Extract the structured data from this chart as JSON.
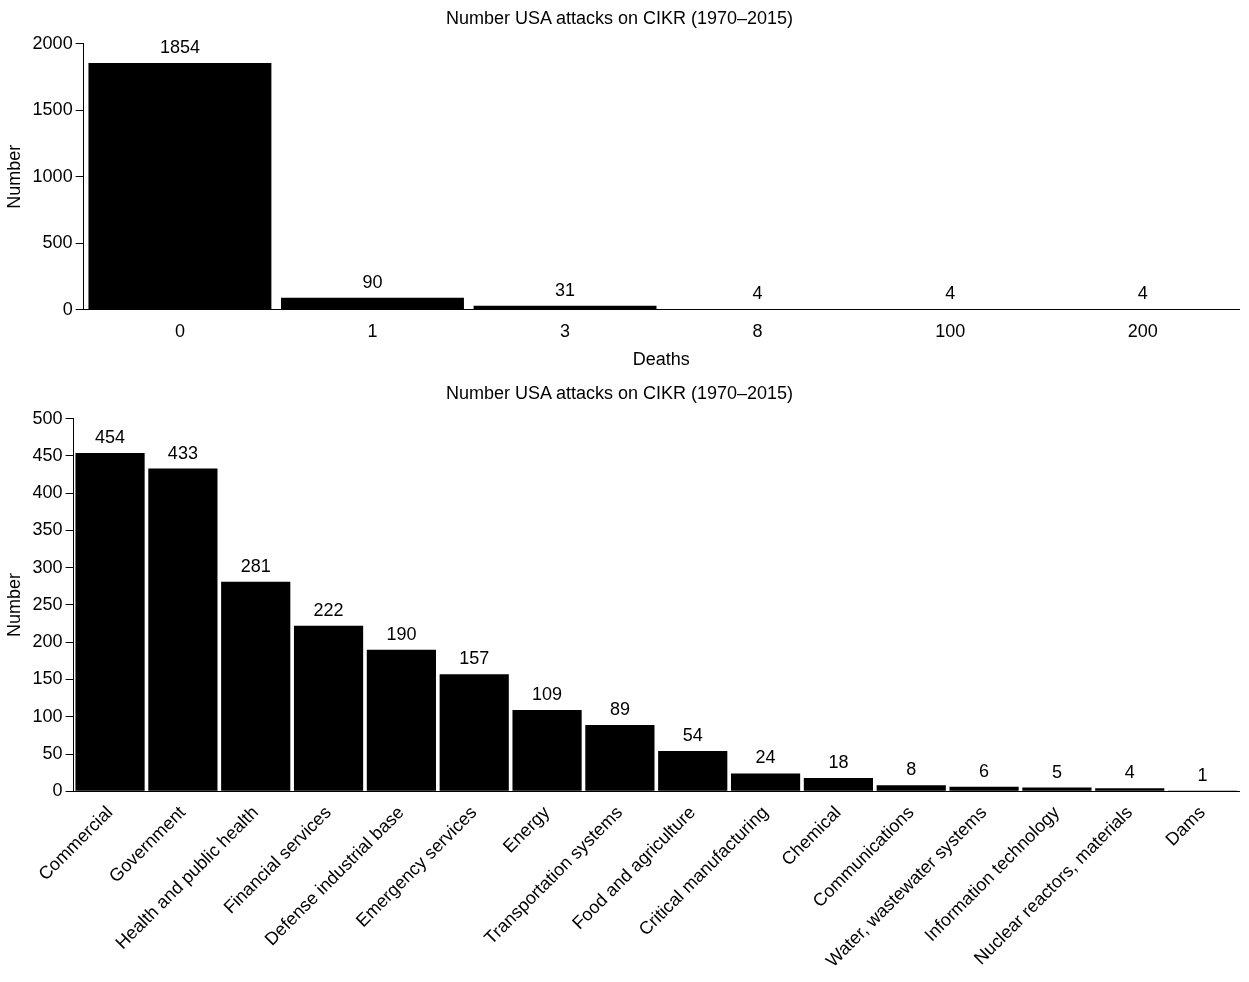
{
  "chart_data": [
    {
      "type": "bar",
      "title": "Number USA attacks on CIKR (1970–2015)",
      "xlabel": "Deaths",
      "ylabel": "Number",
      "categories": [
        "0",
        "1",
        "3",
        "8",
        "100",
        "200"
      ],
      "values": [
        1854,
        90,
        31,
        4,
        4,
        4
      ],
      "color": "#000000",
      "ylim": [
        0,
        2000
      ],
      "yticks": [
        0,
        500,
        1000,
        1500,
        2000
      ],
      "data_labels": true
    },
    {
      "type": "bar",
      "title": "Number USA attacks on CIKR (1970–2015)",
      "ylabel": "Number",
      "categories": [
        "Commercial",
        "Government",
        "Health and public health",
        "Financial services",
        "Defense industrial base",
        "Emergency services",
        "Energy",
        "Transportation systems",
        "Food and agriculture",
        "Critical manufacturing",
        "Chemical",
        "Communications",
        "Water, wastewater systems",
        "Information technology",
        "Nuclear reactors, materials",
        "Dams"
      ],
      "values": [
        454,
        433,
        281,
        222,
        190,
        157,
        109,
        89,
        54,
        24,
        18,
        8,
        6,
        5,
        4,
        1
      ],
      "color": "#000000",
      "ylim": [
        0,
        500
      ],
      "yticks": [
        0,
        50,
        100,
        150,
        200,
        250,
        300,
        350,
        400,
        450,
        500
      ],
      "data_labels": true
    }
  ]
}
